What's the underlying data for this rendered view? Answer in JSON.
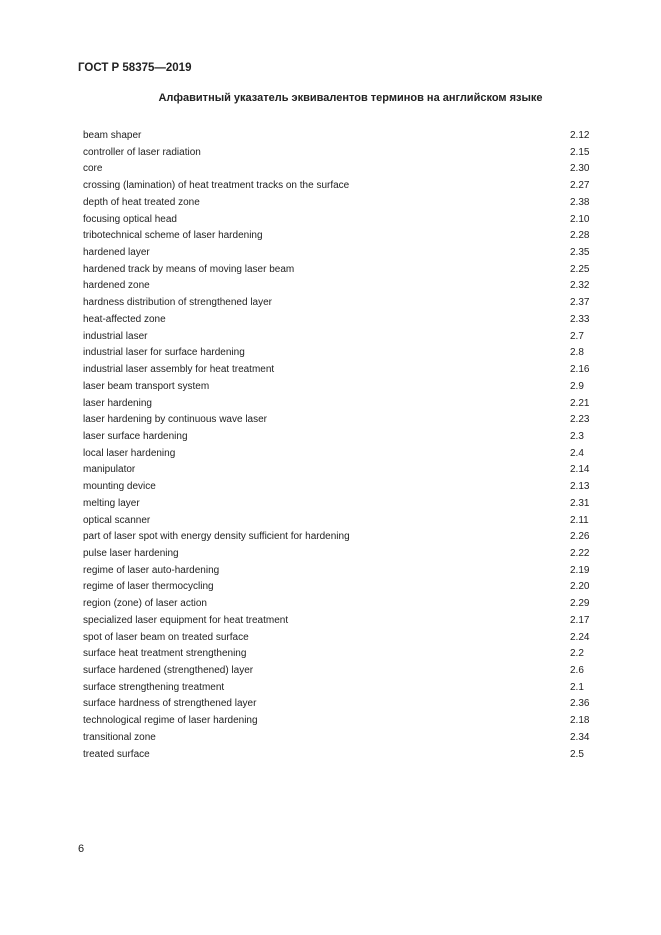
{
  "header": {
    "doc_code": "ГОСТ Р 58375—2019"
  },
  "title": "Алфавитный указатель эквивалентов терминов на английском языке",
  "entries": [
    {
      "term": "beam shaper",
      "ref": "2.12"
    },
    {
      "term": "controller of laser radiation",
      "ref": "2.15"
    },
    {
      "term": "core",
      "ref": "2.30"
    },
    {
      "term": "crossing (lamination) of heat treatment tracks on the surface",
      "ref": "2.27"
    },
    {
      "term": "depth of heat treated zone",
      "ref": "2.38"
    },
    {
      "term": "focusing optical head",
      "ref": "2.10"
    },
    {
      "term": "tribotechnical scheme of laser hardening",
      "ref": "2.28"
    },
    {
      "term": "hardened layer",
      "ref": "2.35"
    },
    {
      "term": "hardened track by means of moving laser beam",
      "ref": "2.25"
    },
    {
      "term": "hardened zone",
      "ref": "2.32"
    },
    {
      "term": "hardness distribution of strengthened layer",
      "ref": "2.37"
    },
    {
      "term": "heat-affected zone",
      "ref": "2.33"
    },
    {
      "term": "industrial laser",
      "ref": "2.7"
    },
    {
      "term": "industrial laser for surface hardening",
      "ref": "2.8"
    },
    {
      "term": "industrial laser assembly for heat treatment",
      "ref": "2.16"
    },
    {
      "term": "laser beam transport system",
      "ref": "2.9"
    },
    {
      "term": "laser hardening",
      "ref": "2.21"
    },
    {
      "term": "laser hardening by continuous wave laser",
      "ref": "2.23"
    },
    {
      "term": "laser surface hardening",
      "ref": "2.3"
    },
    {
      "term": "local laser hardening",
      "ref": "2.4"
    },
    {
      "term": "manipulator",
      "ref": "2.14"
    },
    {
      "term": "mounting device",
      "ref": "2.13"
    },
    {
      "term": "melting layer",
      "ref": "2.31"
    },
    {
      "term": "optical scanner",
      "ref": "2.11"
    },
    {
      "term": "part of laser spot with energy density sufficient for hardening",
      "ref": "2.26"
    },
    {
      "term": "pulse laser hardening",
      "ref": "2.22"
    },
    {
      "term": "regime of laser auto-hardening",
      "ref": "2.19"
    },
    {
      "term": "regime of laser thermocycling",
      "ref": "2.20"
    },
    {
      "term": "region (zone) of laser action",
      "ref": "2.29"
    },
    {
      "term": "specialized laser equipment for heat treatment",
      "ref": "2.17"
    },
    {
      "term": "spot of laser beam on treated surface",
      "ref": "2.24"
    },
    {
      "term": "surface heat treatment strengthening",
      "ref": "2.2"
    },
    {
      "term": "surface hardened (strengthened) layer",
      "ref": "2.6"
    },
    {
      "term": "surface strengthening treatment",
      "ref": "2.1"
    },
    {
      "term": "surface hardness of strengthened layer",
      "ref": "2.36"
    },
    {
      "term": "technological regime of laser hardening",
      "ref": "2.18"
    },
    {
      "term": "transitional zone",
      "ref": "2.34"
    },
    {
      "term": "treated surface",
      "ref": "2.5"
    }
  ],
  "footer": {
    "page_number": "6"
  }
}
